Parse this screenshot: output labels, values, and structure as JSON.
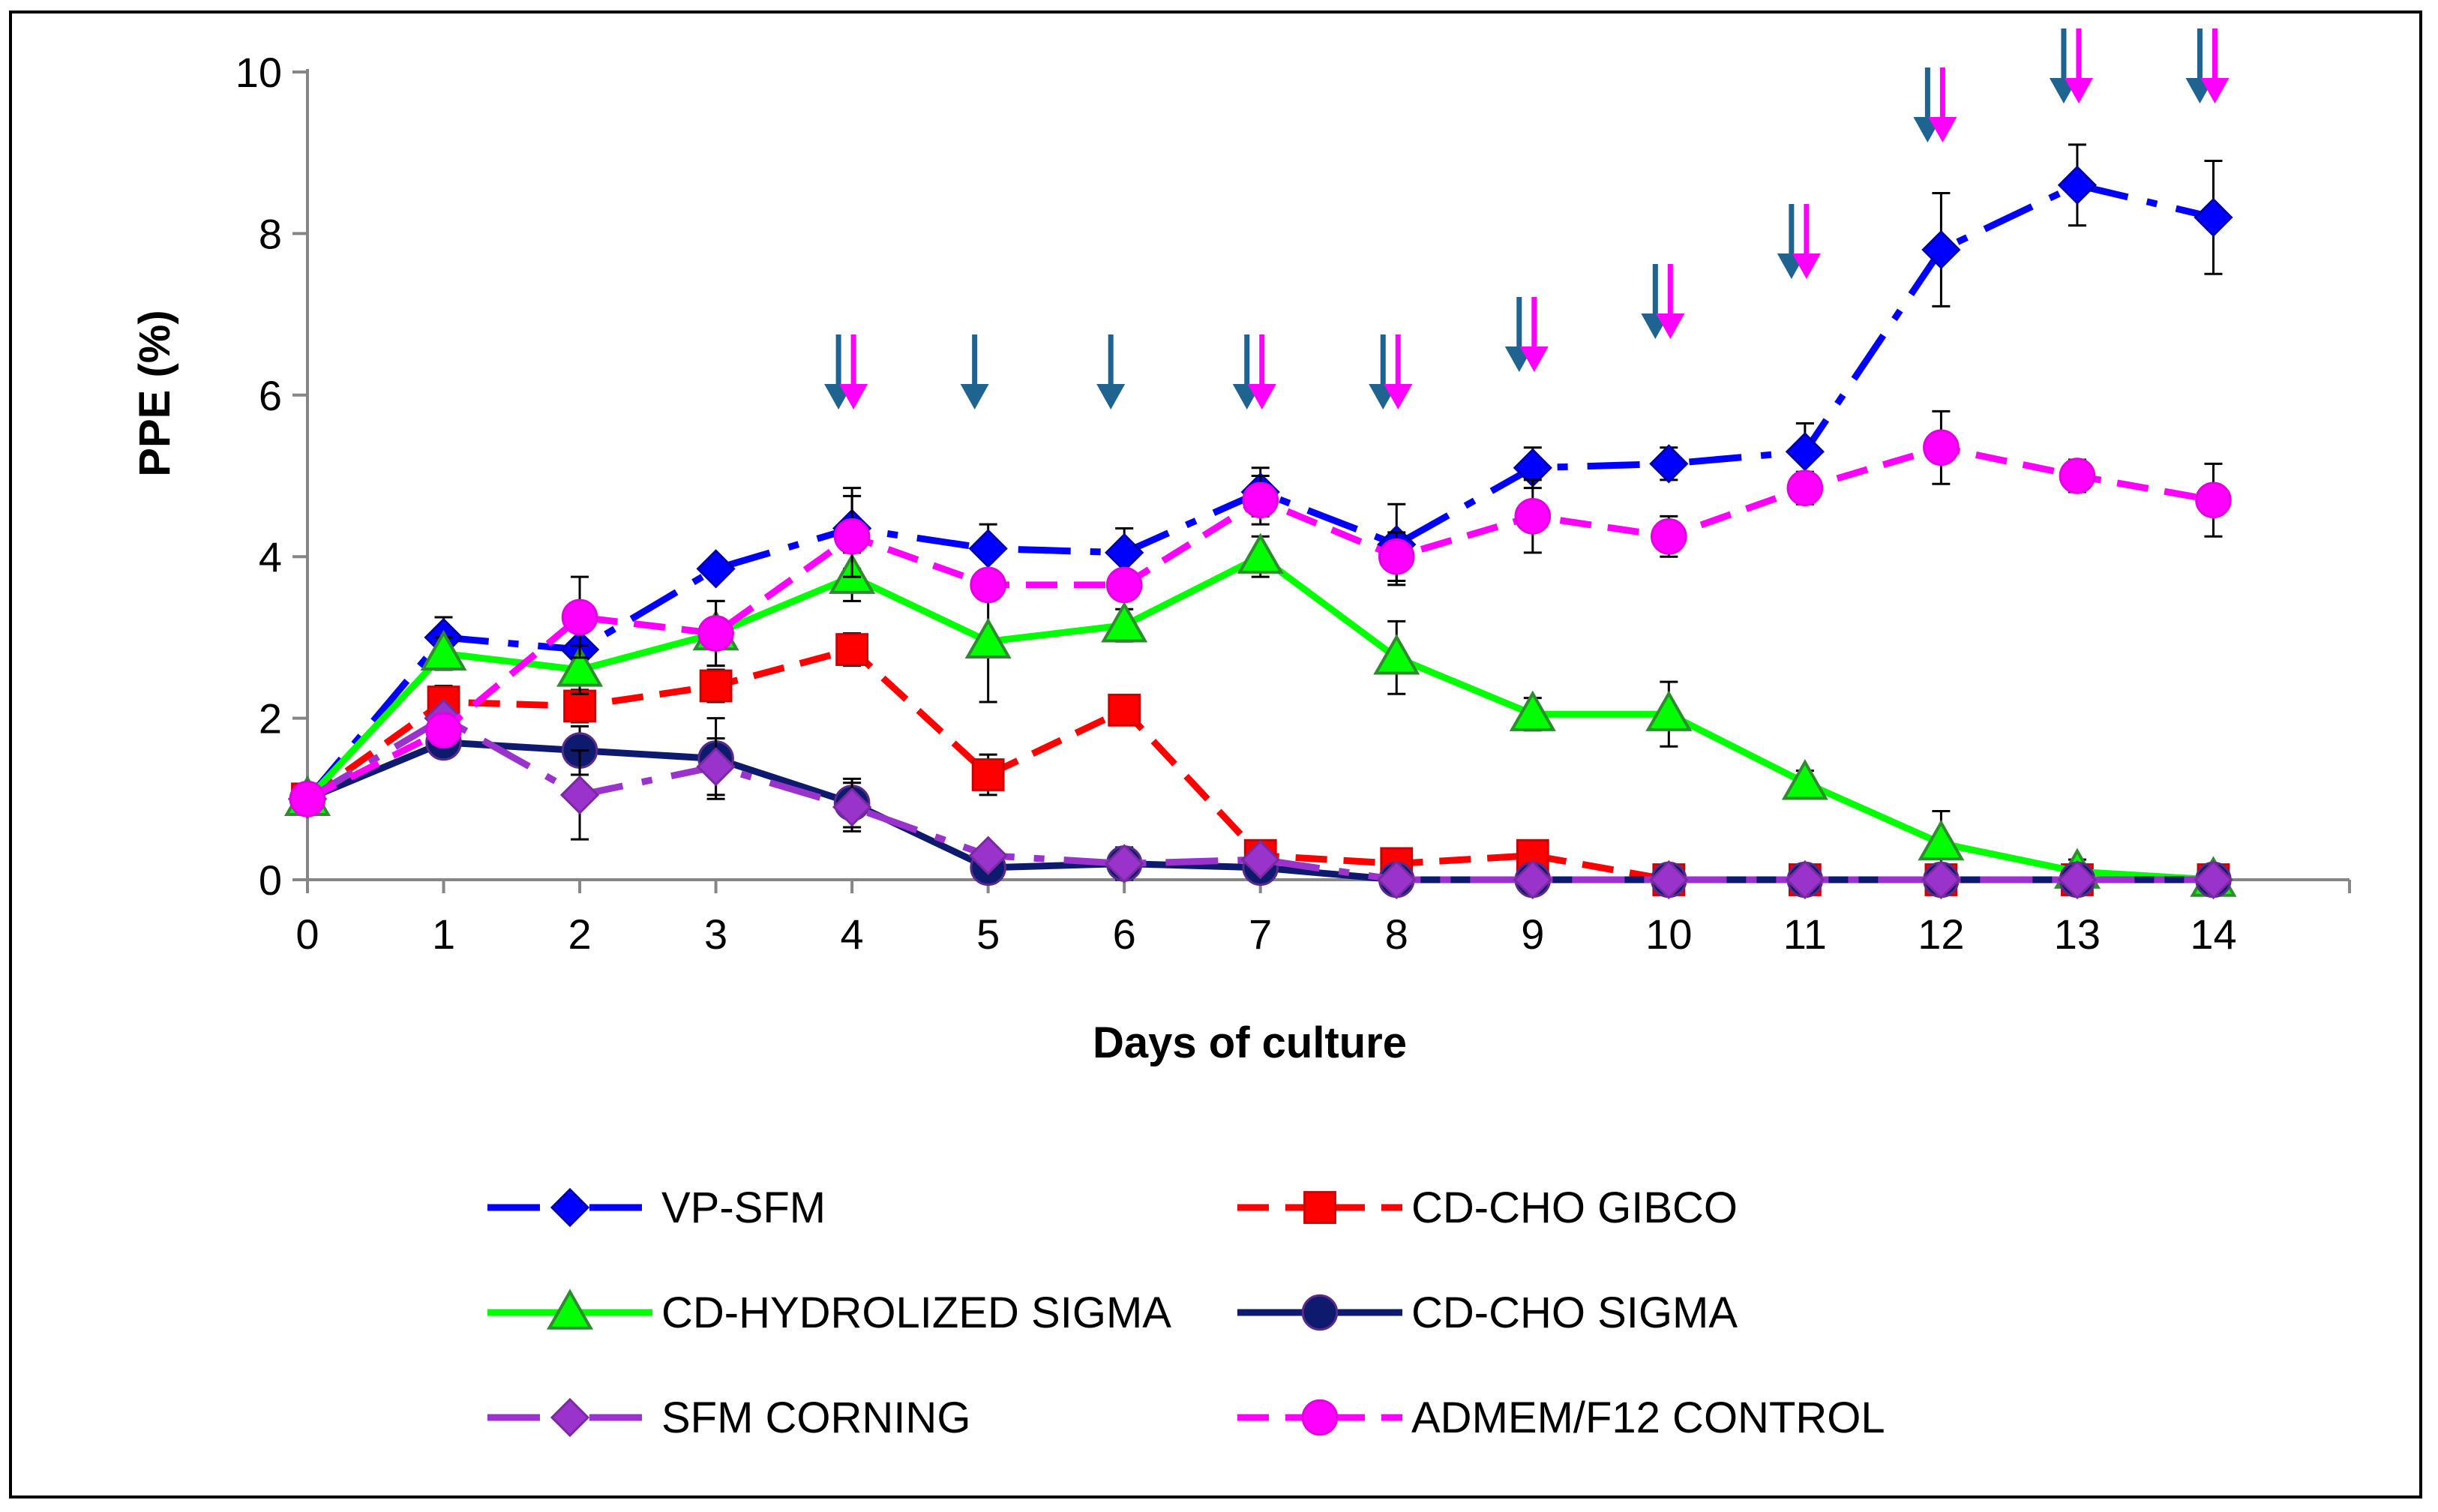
{
  "chart_data": {
    "type": "line",
    "xlabel": "Days of culture",
    "ylabel": "PPE (%)",
    "xlim": [
      0,
      15
    ],
    "ylim": [
      0,
      10
    ],
    "x_ticks": [
      0,
      1,
      2,
      3,
      4,
      5,
      6,
      7,
      8,
      9,
      10,
      11,
      12,
      13,
      14
    ],
    "y_ticks": [
      0,
      2,
      4,
      6,
      8,
      10
    ],
    "x": [
      0,
      1,
      2,
      3,
      4,
      5,
      6,
      7,
      8,
      9,
      10,
      11,
      12,
      13,
      14
    ],
    "series": [
      {
        "name": "VP-SFM",
        "color": "#0000FF",
        "marker": "diamond",
        "dash": "long-dash-dot",
        "values": [
          1.0,
          3.0,
          2.85,
          3.85,
          4.35,
          4.1,
          4.05,
          4.8,
          4.15,
          5.1,
          5.15,
          5.3,
          7.8,
          8.6,
          8.2
        ],
        "errors": [
          0,
          0.25,
          0,
          0,
          0.5,
          0.3,
          0.3,
          0.3,
          0.5,
          0.25,
          0.2,
          0.35,
          0.7,
          0.5,
          0.7
        ]
      },
      {
        "name": "CD-CHO GIBCO",
        "color": "#FF0000",
        "marker": "square",
        "dash": "dash",
        "values": [
          1.0,
          2.2,
          2.15,
          2.4,
          2.85,
          1.3,
          2.1,
          0.3,
          0.2,
          0.3,
          0.0,
          0.0,
          0.0,
          0.0,
          0.0
        ],
        "errors": [
          0,
          0.2,
          0.2,
          0.2,
          0.2,
          0.25,
          0,
          0,
          0,
          0,
          0,
          0,
          0,
          0,
          0
        ]
      },
      {
        "name": "CD-HYDROLIZED SIGMA",
        "color": "#00FF00",
        "marker": "triangle",
        "dash": "solid",
        "values": [
          1.0,
          2.8,
          2.6,
          3.05,
          3.75,
          2.95,
          3.15,
          4.0,
          2.75,
          2.05,
          2.05,
          1.2,
          0.45,
          0.1,
          0.0
        ],
        "errors": [
          0,
          0.2,
          0.3,
          0.4,
          0.3,
          0.75,
          0.2,
          0.25,
          0.45,
          0.2,
          0.4,
          0.15,
          0.4,
          0.15,
          0
        ]
      },
      {
        "name": "CD-CHO SIGMA",
        "color": "#0D1A6E",
        "marker": "circle",
        "dash": "solid",
        "values": [
          1.0,
          1.7,
          1.6,
          1.5,
          0.95,
          0.15,
          0.2,
          0.15,
          0.0,
          0.0,
          0.0,
          0.0,
          0.0,
          0.0,
          0.0
        ],
        "errors": [
          0,
          0.15,
          0.3,
          0.5,
          0.3,
          0.1,
          0.2,
          0.1,
          0,
          0,
          0,
          0,
          0,
          0,
          0
        ]
      },
      {
        "name": "SFM CORNING",
        "color": "#9933CC",
        "marker": "diamond",
        "dash": "long-dash-dot",
        "values": [
          1.0,
          2.0,
          1.05,
          1.4,
          0.9,
          0.3,
          0.2,
          0.25,
          0.0,
          0.0,
          0.0,
          0.0,
          0.0,
          0.0,
          0.0
        ],
        "errors": [
          0,
          0,
          0.55,
          0.35,
          0.3,
          0,
          0,
          0,
          0,
          0,
          0,
          0,
          0,
          0,
          0
        ]
      },
      {
        "name": "ADMEM/F12 CONTROL",
        "color": "#FF00FF",
        "marker": "circle",
        "dash": "dash",
        "values": [
          1.0,
          1.85,
          3.25,
          3.05,
          4.25,
          3.65,
          3.65,
          4.7,
          4.0,
          4.5,
          4.25,
          4.85,
          5.35,
          5.0,
          4.7
        ],
        "errors": [
          0,
          0,
          0.5,
          0.4,
          0.5,
          0,
          0,
          0.3,
          0.3,
          0.45,
          0.25,
          0.2,
          0.45,
          0.2,
          0.45
        ]
      }
    ],
    "arrows": [
      {
        "x": 4,
        "blue": true,
        "magenta": true
      },
      {
        "x": 5,
        "blue": true,
        "magenta": false
      },
      {
        "x": 6,
        "blue": true,
        "magenta": false
      },
      {
        "x": 7,
        "blue": true,
        "magenta": true
      },
      {
        "x": 8,
        "blue": true,
        "magenta": true
      },
      {
        "x": 9,
        "blue": true,
        "magenta": true
      },
      {
        "x": 10,
        "blue": true,
        "magenta": true
      },
      {
        "x": 11,
        "blue": true,
        "magenta": true
      },
      {
        "x": 12,
        "blue": true,
        "magenta": true
      },
      {
        "x": 13,
        "blue": true,
        "magenta": true
      },
      {
        "x": 14,
        "blue": true,
        "magenta": true
      }
    ],
    "arrow_colors": {
      "blue": "#1F6391",
      "magenta": "#FF00FF"
    },
    "legend_position": "bottom"
  }
}
